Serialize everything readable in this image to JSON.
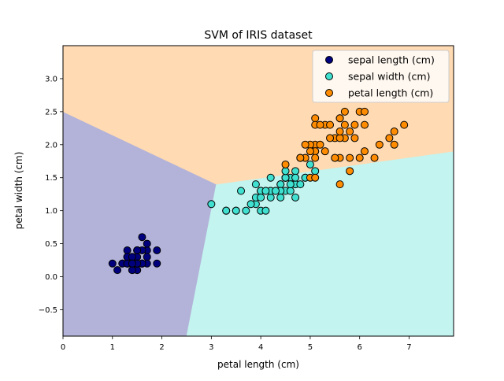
{
  "chart_data": {
    "type": "scatter",
    "title": "SVM of IRIS dataset",
    "xlabel": "petal length (cm)",
    "ylabel": "petal width (cm)",
    "xlim": [
      0,
      7.9
    ],
    "ylim": [
      -0.9,
      3.5
    ],
    "xticks": [
      0,
      1,
      2,
      3,
      4,
      5,
      6,
      7
    ],
    "yticks": [
      -0.5,
      0.0,
      0.5,
      1.0,
      1.5,
      2.0,
      2.5,
      3.0
    ],
    "grid": false,
    "legend_position": "top-right",
    "regions": [
      {
        "name": "region-class-0",
        "color": "#b3b3d9",
        "polygon": [
          [
            0,
            -0.9
          ],
          [
            2.5,
            -0.9
          ],
          [
            3.1,
            1.4
          ],
          [
            0,
            2.5
          ]
        ]
      },
      {
        "name": "region-class-1",
        "color": "#c3f4ef",
        "polygon": [
          [
            2.5,
            -0.9
          ],
          [
            7.9,
            -0.9
          ],
          [
            7.9,
            1.9
          ],
          [
            3.1,
            1.4
          ]
        ]
      },
      {
        "name": "region-class-2",
        "color": "#ffdab2",
        "polygon": [
          [
            0,
            2.5
          ],
          [
            3.1,
            1.4
          ],
          [
            7.9,
            1.9
          ],
          [
            7.9,
            3.5
          ],
          [
            0,
            3.5
          ]
        ]
      }
    ],
    "series": [
      {
        "name": "sepal length (cm)",
        "color": "#00007f",
        "points": [
          [
            1.4,
            0.2
          ],
          [
            1.4,
            0.2
          ],
          [
            1.3,
            0.2
          ],
          [
            1.5,
            0.2
          ],
          [
            1.4,
            0.2
          ],
          [
            1.7,
            0.4
          ],
          [
            1.4,
            0.3
          ],
          [
            1.5,
            0.2
          ],
          [
            1.4,
            0.2
          ],
          [
            1.5,
            0.1
          ],
          [
            1.5,
            0.2
          ],
          [
            1.6,
            0.2
          ],
          [
            1.4,
            0.1
          ],
          [
            1.1,
            0.1
          ],
          [
            1.2,
            0.2
          ],
          [
            1.5,
            0.4
          ],
          [
            1.3,
            0.4
          ],
          [
            1.4,
            0.3
          ],
          [
            1.7,
            0.3
          ],
          [
            1.5,
            0.3
          ],
          [
            1.7,
            0.2
          ],
          [
            1.5,
            0.4
          ],
          [
            1.0,
            0.2
          ],
          [
            1.7,
            0.5
          ],
          [
            1.9,
            0.2
          ],
          [
            1.6,
            0.2
          ],
          [
            1.6,
            0.4
          ],
          [
            1.5,
            0.2
          ],
          [
            1.4,
            0.2
          ],
          [
            1.6,
            0.2
          ],
          [
            1.6,
            0.2
          ],
          [
            1.5,
            0.4
          ],
          [
            1.5,
            0.1
          ],
          [
            1.4,
            0.2
          ],
          [
            1.5,
            0.2
          ],
          [
            1.2,
            0.2
          ],
          [
            1.3,
            0.2
          ],
          [
            1.4,
            0.1
          ],
          [
            1.3,
            0.2
          ],
          [
            1.5,
            0.2
          ],
          [
            1.3,
            0.3
          ],
          [
            1.3,
            0.3
          ],
          [
            1.3,
            0.2
          ],
          [
            1.6,
            0.6
          ],
          [
            1.9,
            0.4
          ],
          [
            1.4,
            0.3
          ],
          [
            1.6,
            0.2
          ],
          [
            1.4,
            0.2
          ],
          [
            1.5,
            0.2
          ],
          [
            1.4,
            0.2
          ]
        ]
      },
      {
        "name": "sepal width (cm)",
        "color": "#40e0d0",
        "points": [
          [
            4.7,
            1.4
          ],
          [
            4.5,
            1.5
          ],
          [
            4.9,
            1.5
          ],
          [
            4.0,
            1.3
          ],
          [
            4.6,
            1.5
          ],
          [
            4.5,
            1.3
          ],
          [
            4.7,
            1.6
          ],
          [
            3.3,
            1.0
          ],
          [
            4.6,
            1.3
          ],
          [
            3.9,
            1.4
          ],
          [
            3.5,
            1.0
          ],
          [
            4.2,
            1.5
          ],
          [
            4.0,
            1.0
          ],
          [
            4.7,
            1.4
          ],
          [
            3.6,
            1.3
          ],
          [
            4.4,
            1.4
          ],
          [
            4.5,
            1.5
          ],
          [
            4.1,
            1.0
          ],
          [
            4.5,
            1.5
          ],
          [
            3.9,
            1.1
          ],
          [
            4.8,
            1.8
          ],
          [
            4.0,
            1.3
          ],
          [
            4.9,
            1.5
          ],
          [
            4.7,
            1.2
          ],
          [
            4.3,
            1.3
          ],
          [
            4.4,
            1.4
          ],
          [
            4.8,
            1.4
          ],
          [
            5.0,
            1.7
          ],
          [
            4.5,
            1.5
          ],
          [
            3.5,
            1.0
          ],
          [
            3.8,
            1.1
          ],
          [
            3.7,
            1.0
          ],
          [
            3.9,
            1.2
          ],
          [
            5.1,
            1.6
          ],
          [
            4.5,
            1.5
          ],
          [
            4.5,
            1.6
          ],
          [
            4.7,
            1.5
          ],
          [
            4.4,
            1.3
          ],
          [
            4.1,
            1.3
          ],
          [
            4.0,
            1.3
          ],
          [
            4.4,
            1.2
          ],
          [
            4.6,
            1.4
          ],
          [
            4.0,
            1.2
          ],
          [
            3.3,
            1.0
          ],
          [
            4.2,
            1.3
          ],
          [
            4.2,
            1.2
          ],
          [
            4.2,
            1.3
          ],
          [
            4.3,
            1.3
          ],
          [
            3.0,
            1.1
          ],
          [
            4.1,
            1.3
          ]
        ]
      },
      {
        "name": "petal length (cm)",
        "color": "#ff8c00",
        "points": [
          [
            6.0,
            2.5
          ],
          [
            5.1,
            1.9
          ],
          [
            5.9,
            2.1
          ],
          [
            5.6,
            1.8
          ],
          [
            5.8,
            2.2
          ],
          [
            6.6,
            2.1
          ],
          [
            4.5,
            1.7
          ],
          [
            6.3,
            1.8
          ],
          [
            5.8,
            1.8
          ],
          [
            6.1,
            2.5
          ],
          [
            5.1,
            2.0
          ],
          [
            5.3,
            1.9
          ],
          [
            5.5,
            2.1
          ],
          [
            5.0,
            2.0
          ],
          [
            5.1,
            2.4
          ],
          [
            5.3,
            2.3
          ],
          [
            5.5,
            1.8
          ],
          [
            6.7,
            2.2
          ],
          [
            6.9,
            2.3
          ],
          [
            5.0,
            1.5
          ],
          [
            5.7,
            2.3
          ],
          [
            4.9,
            2.0
          ],
          [
            6.7,
            2.0
          ],
          [
            4.9,
            1.8
          ],
          [
            5.7,
            2.1
          ],
          [
            6.0,
            1.8
          ],
          [
            4.8,
            1.8
          ],
          [
            4.9,
            1.8
          ],
          [
            5.6,
            2.1
          ],
          [
            5.8,
            1.6
          ],
          [
            6.1,
            1.9
          ],
          [
            6.4,
            2.0
          ],
          [
            5.6,
            2.2
          ],
          [
            5.1,
            1.5
          ],
          [
            5.6,
            1.4
          ],
          [
            6.1,
            2.3
          ],
          [
            5.6,
            2.4
          ],
          [
            5.5,
            1.8
          ],
          [
            4.8,
            1.8
          ],
          [
            5.4,
            2.1
          ],
          [
            5.6,
            2.4
          ],
          [
            5.1,
            2.3
          ],
          [
            5.1,
            1.9
          ],
          [
            5.9,
            2.3
          ],
          [
            5.7,
            2.5
          ],
          [
            5.2,
            2.3
          ],
          [
            5.0,
            1.9
          ],
          [
            5.2,
            2.0
          ],
          [
            5.4,
            2.3
          ],
          [
            5.1,
            1.8
          ]
        ]
      }
    ]
  }
}
